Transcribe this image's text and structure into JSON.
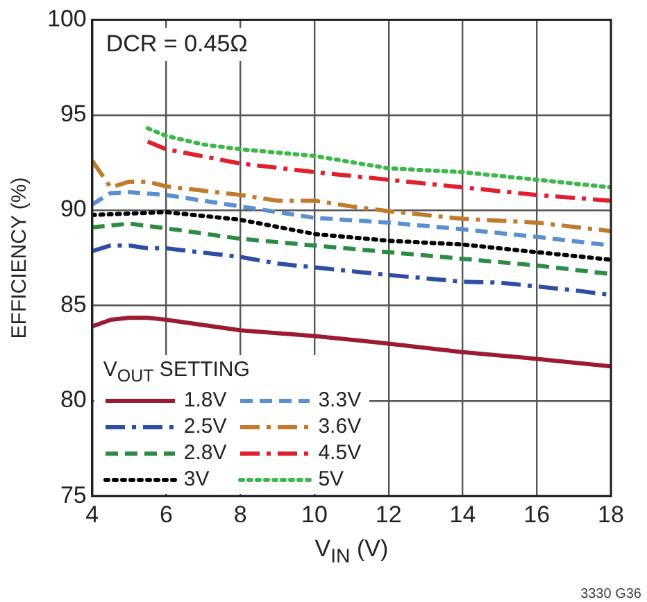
{
  "chart_data": {
    "type": "line",
    "xlabel": "V$_{IN}$ (V)",
    "ylabel": "EFFICIENCY (%)",
    "legend_title": "V$_{OUT}$ SETTING",
    "legend": "bottom left",
    "grid": true,
    "marker": "none",
    "xlim": [
      4,
      18
    ],
    "xticks": [
      4,
      6,
      8,
      10,
      12,
      14,
      16,
      18
    ],
    "ylim": [
      75,
      100
    ],
    "yticks": [
      75,
      80,
      85,
      90,
      95,
      100
    ],
    "annotations": [
      "DCR = 0.45Ω",
      "3330 G36"
    ],
    "series": [
      {
        "name": "1.8V",
        "color": "#9b1b30",
        "line_style": "solid",
        "x": [
          4,
          4.5,
          5,
          5.5,
          6,
          8,
          10,
          12,
          14,
          16,
          18
        ],
        "values": [
          83.9,
          84.25,
          84.35,
          84.35,
          84.25,
          83.7,
          83.4,
          83.0,
          82.55,
          82.2,
          81.8
        ]
      },
      {
        "name": "2.5V",
        "color": "#2e4ea3",
        "line_style": "dashdot",
        "x": [
          4,
          4.5,
          5,
          5.5,
          6,
          8,
          9,
          10,
          12,
          14,
          15,
          16,
          17,
          18
        ],
        "values": [
          87.85,
          88.15,
          88.15,
          88.0,
          88.0,
          87.55,
          87.2,
          87.0,
          86.6,
          86.25,
          86.2,
          86.0,
          85.8,
          85.55
        ]
      },
      {
        "name": "2.8V",
        "color": "#2e8b45",
        "line_style": "dashed",
        "x": [
          4,
          5,
          6,
          8,
          10,
          12,
          14,
          16,
          18
        ],
        "values": [
          89.1,
          89.3,
          89.05,
          88.5,
          88.15,
          87.8,
          87.45,
          87.1,
          86.65
        ]
      },
      {
        "name": "3V",
        "color": "#000000",
        "line_style": "dotted",
        "x": [
          4,
          6,
          7,
          8,
          10,
          12,
          14,
          16,
          18
        ],
        "values": [
          89.75,
          89.9,
          89.7,
          89.5,
          88.75,
          88.4,
          88.2,
          87.8,
          87.4
        ]
      },
      {
        "name": "3.3V",
        "color": "#5b8fd0",
        "line_style": "dashed",
        "x": [
          4,
          4.5,
          5,
          6,
          8,
          10,
          12,
          14,
          16,
          18
        ],
        "values": [
          90.3,
          90.9,
          90.95,
          90.8,
          90.2,
          89.6,
          89.35,
          89.0,
          88.6,
          88.15
        ]
      },
      {
        "name": "3.6V",
        "color": "#c07a2c",
        "line_style": "dashdot",
        "x": [
          4,
          4.5,
          5,
          5.5,
          6,
          8,
          9,
          10,
          11,
          12,
          14,
          16,
          18
        ],
        "values": [
          92.6,
          91.2,
          91.5,
          91.5,
          91.25,
          90.8,
          90.5,
          90.5,
          90.2,
          89.95,
          89.55,
          89.35,
          88.9
        ]
      },
      {
        "name": "4.5V",
        "color": "#e0202c",
        "line_style": "dashdot",
        "x": [
          5.5,
          6,
          8,
          10,
          12,
          14,
          16,
          18
        ],
        "values": [
          93.6,
          93.2,
          92.45,
          92.0,
          91.6,
          91.2,
          90.8,
          90.5
        ]
      },
      {
        "name": "5V",
        "color": "#3cb84a",
        "line_style": "dotted",
        "x": [
          5.5,
          6,
          7,
          8,
          10,
          12,
          14,
          16,
          18
        ],
        "values": [
          94.3,
          93.9,
          93.45,
          93.2,
          92.85,
          92.2,
          92.0,
          91.6,
          91.2
        ]
      }
    ]
  }
}
